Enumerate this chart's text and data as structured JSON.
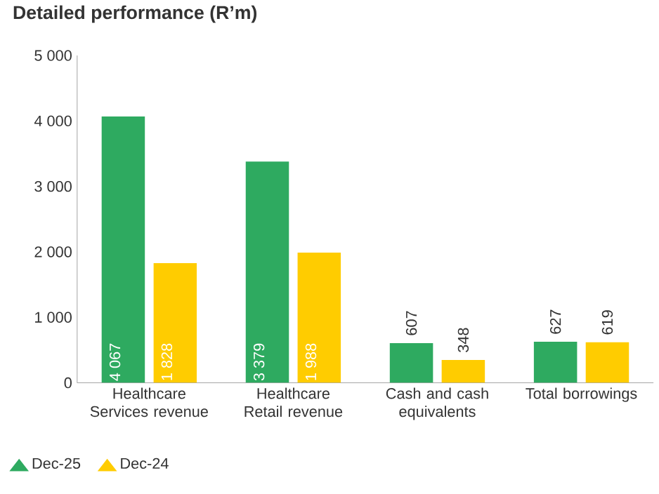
{
  "chart_data": {
    "type": "bar",
    "title": "Detailed performance (R’m)",
    "categories": [
      "Healthcare Services revenue",
      "Healthcare Retail revenue",
      "Cash and cash equivalents",
      "Total borrowings"
    ],
    "series": [
      {
        "name": "Dec-25",
        "color": "#2eaa60",
        "values": [
          4067,
          3379,
          607,
          627
        ],
        "value_labels": [
          "4 067",
          "3 379",
          "607",
          "627"
        ]
      },
      {
        "name": "Dec-24",
        "color": "#ffcc00",
        "values": [
          1828,
          1988,
          348,
          619
        ],
        "value_labels": [
          "1 828",
          "1 988",
          "348",
          "619"
        ]
      }
    ],
    "ylim": [
      0,
      5000
    ],
    "yticks": [
      0,
      {
        "value": 1000,
        "label": "1 000"
      },
      {
        "value": 2000,
        "label": "2 000"
      },
      {
        "value": 3000,
        "label": "3 000"
      },
      {
        "value": 4000,
        "label": "4 000"
      },
      {
        "value": 5000,
        "label": "5 000"
      }
    ],
    "legend": "bottom"
  }
}
